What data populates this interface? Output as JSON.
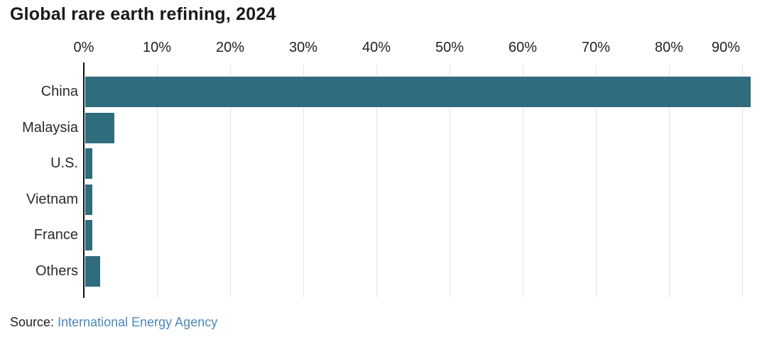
{
  "title": "Global rare earth refining, 2024",
  "source": {
    "prefix": "Source:",
    "link_label": "International Energy Agency"
  },
  "colors": {
    "bar": "#2f6c7d",
    "axis": "#111111",
    "gridline": "#e3e3e3",
    "title": "#1a1a1a",
    "label": "#2b2b2b",
    "link": "#4d87ba"
  },
  "chart_data": {
    "type": "bar",
    "orientation": "horizontal",
    "title": "Global rare earth refining, 2024",
    "categories": [
      "China",
      "Malaysia",
      "U.S.",
      "Vietnam",
      "France",
      "Others"
    ],
    "values": [
      91,
      4,
      1,
      1,
      1,
      2
    ],
    "unit": "%",
    "xlabel": "",
    "ylabel": "",
    "xlim": [
      0,
      90
    ],
    "x_ticks": [
      "0%",
      "10%",
      "20%",
      "30%",
      "40%",
      "50%",
      "60%",
      "70%",
      "80%",
      "90%"
    ],
    "grid": true,
    "legend": false
  }
}
